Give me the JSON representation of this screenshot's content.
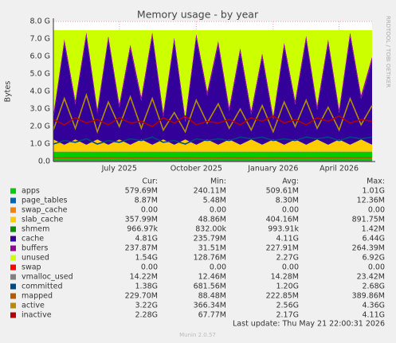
{
  "chart_data": {
    "type": "area",
    "title": "Memory usage - by year",
    "y_label": "Bytes",
    "side_text": "RRDTOOL / TOBI OETIKER",
    "footer": "Last update: Thu May 21 22:00:31 2026",
    "version": "Munin 2.0.57",
    "stat_headers": [
      "Cur:",
      "Min:",
      "Avg:",
      "Max:"
    ],
    "ylim": [
      0,
      8
    ],
    "yticks": [
      {
        "value": 0,
        "label": "0.0"
      },
      {
        "value": 1,
        "label": "1.0 G"
      },
      {
        "value": 2,
        "label": "2.0 G"
      },
      {
        "value": 3,
        "label": "3.0 G"
      },
      {
        "value": 4,
        "label": "4.0 G"
      },
      {
        "value": 5,
        "label": "5.0 G"
      },
      {
        "value": 6,
        "label": "6.0 G"
      },
      {
        "value": 7,
        "label": "7.0 G"
      },
      {
        "value": 8,
        "label": "8.0 G"
      }
    ],
    "grid": true,
    "categories": [
      null,
      null,
      null,
      null,
      null,
      null,
      "July 2025",
      null,
      null,
      null,
      null,
      null,
      null,
      "October 2025",
      null,
      null,
      null,
      null,
      null,
      null,
      "January 2026",
      null,
      null,
      null,
      null,
      null,
      "April 2026",
      null,
      null,
      null
    ],
    "series": [
      {
        "name": "apps",
        "color": "#00cc00",
        "stack": true,
        "stats": [
          "579.69M",
          "240.11M",
          "509.61M",
          "1.01G"
        ],
        "values": [
          0.55,
          0.55,
          0.55,
          0.55,
          0.55,
          0.55,
          0.55,
          0.55,
          0.55,
          0.55,
          0.55,
          0.55,
          0.55,
          0.55,
          0.55,
          0.55,
          0.55,
          0.55,
          0.55,
          0.55,
          0.55,
          0.55,
          0.55,
          0.55,
          0.55,
          0.55,
          0.55,
          0.55,
          0.55,
          0.55
        ]
      },
      {
        "name": "page_tables",
        "color": "#0066b3",
        "stack": true,
        "stats": [
          "8.87M",
          "5.48M",
          "8.30M",
          "12.36M"
        ],
        "values": [
          0.01,
          0.01,
          0.01,
          0.01,
          0.01,
          0.01,
          0.01,
          0.01,
          0.01,
          0.01,
          0.01,
          0.01,
          0.01,
          0.01,
          0.01,
          0.01,
          0.01,
          0.01,
          0.01,
          0.01,
          0.01,
          0.01,
          0.01,
          0.01,
          0.01,
          0.01,
          0.01,
          0.01,
          0.01,
          0.01
        ]
      },
      {
        "name": "swap_cache",
        "color": "#ff8000",
        "stack": true,
        "stats": [
          "0.00",
          "0.00",
          "0.00",
          "0.00"
        ],
        "values": [
          0,
          0,
          0,
          0,
          0,
          0,
          0,
          0,
          0,
          0,
          0,
          0,
          0,
          0,
          0,
          0,
          0,
          0,
          0,
          0,
          0,
          0,
          0,
          0,
          0,
          0,
          0,
          0,
          0,
          0
        ]
      },
      {
        "name": "slab_cache",
        "color": "#ffcc00",
        "stack": true,
        "stats": [
          "357.99M",
          "48.86M",
          "404.16M",
          "891.75M"
        ],
        "values": [
          0.7,
          0.4,
          0.7,
          0.4,
          0.7,
          0.4,
          0.7,
          0.4,
          0.7,
          0.4,
          0.7,
          0.4,
          0.7,
          0.4,
          0.7,
          0.4,
          0.7,
          0.4,
          0.7,
          0.4,
          0.7,
          0.4,
          0.7,
          0.4,
          0.7,
          0.4,
          0.7,
          0.4,
          0.7,
          0.4
        ]
      },
      {
        "name": "shmem",
        "color": "#008f00",
        "stack": true,
        "stats": [
          "966.97k",
          "832.00k",
          "993.91k",
          "1.42M"
        ],
        "values": [
          0.001,
          0.001,
          0.001,
          0.001,
          0.001,
          0.001,
          0.001,
          0.001,
          0.001,
          0.001,
          0.001,
          0.001,
          0.001,
          0.001,
          0.001,
          0.001,
          0.001,
          0.001,
          0.001,
          0.001,
          0.001,
          0.001,
          0.001,
          0.001,
          0.001,
          0.001,
          0.001,
          0.001,
          0.001,
          0.001
        ]
      },
      {
        "name": "cache",
        "color": "#330099",
        "stack": true,
        "stats": [
          "4.81G",
          "235.79M",
          "4.11G",
          "6.44G"
        ],
        "values": [
          1.2,
          5.8,
          2.0,
          6.2,
          1.5,
          6.0,
          1.8,
          5.5,
          2.2,
          6.2,
          1.3,
          5.9,
          1.0,
          6.1,
          2.5,
          5.7,
          1.6,
          5.3,
          1.4,
          5.0,
          1.1,
          5.6,
          2.0,
          6.0,
          1.7,
          5.8,
          1.5,
          6.2,
          2.3,
          4.8
        ]
      },
      {
        "name": "buffers",
        "color": "#990099",
        "stack": true,
        "stats": [
          "237.87M",
          "31.51M",
          "227.91M",
          "264.39M"
        ],
        "values": [
          0.24,
          0.24,
          0.24,
          0.24,
          0.24,
          0.24,
          0.24,
          0.24,
          0.24,
          0.24,
          0.24,
          0.24,
          0.24,
          0.24,
          0.24,
          0.24,
          0.24,
          0.24,
          0.24,
          0.24,
          0.24,
          0.24,
          0.24,
          0.24,
          0.24,
          0.24,
          0.24,
          0.24,
          0.24,
          0.24
        ]
      },
      {
        "name": "unused",
        "color": "#ccff00",
        "stack": true,
        "stats": [
          "1.54G",
          "128.76M",
          "2.27G",
          "6.92G"
        ],
        "values": [
          4.8,
          0.5,
          4.0,
          0.1,
          4.5,
          0.3,
          4.2,
          0.8,
          3.8,
          0.1,
          4.7,
          0.4,
          5.0,
          0.2,
          3.5,
          0.6,
          4.4,
          1.0,
          4.6,
          1.3,
          4.9,
          0.7,
          4.0,
          0.3,
          4.3,
          0.5,
          4.5,
          0.1,
          3.7,
          1.5
        ]
      },
      {
        "name": "swap",
        "color": "#ff0000",
        "stack": true,
        "stats": [
          "0.00",
          "0.00",
          "0.00",
          "0.00"
        ],
        "values": [
          0,
          0,
          0,
          0,
          0,
          0,
          0,
          0,
          0,
          0,
          0,
          0,
          0,
          0,
          0,
          0,
          0,
          0,
          0,
          0,
          0,
          0,
          0,
          0,
          0,
          0,
          0,
          0,
          0,
          0
        ]
      },
      {
        "name": "vmalloc_used",
        "color": "#808080",
        "stack": false,
        "stats": [
          "14.22M",
          "12.46M",
          "14.28M",
          "23.42M"
        ],
        "values": [
          0.014,
          0.014,
          0.014,
          0.014,
          0.014,
          0.014,
          0.014,
          0.014,
          0.014,
          0.014,
          0.014,
          0.014,
          0.014,
          0.014,
          0.014,
          0.014,
          0.014,
          0.014,
          0.014,
          0.014,
          0.014,
          0.014,
          0.014,
          0.014,
          0.014,
          0.014,
          0.014,
          0.014,
          0.014,
          0.014
        ]
      },
      {
        "name": "committed",
        "color": "#00487d",
        "stack": false,
        "stats": [
          "1.38G",
          "681.56M",
          "1.20G",
          "2.68G"
        ],
        "values": [
          1.0,
          1.2,
          1.1,
          1.3,
          1.0,
          1.2,
          1.1,
          1.3,
          1.2,
          1.4,
          1.1,
          1.2,
          1.0,
          1.3,
          1.2,
          1.3,
          1.2,
          1.4,
          1.3,
          1.4,
          1.2,
          1.3,
          1.2,
          1.4,
          1.3,
          1.4,
          1.2,
          1.4,
          1.3,
          1.4
        ]
      },
      {
        "name": "mapped",
        "color": "#b35a00",
        "stack": false,
        "stats": [
          "229.70M",
          "88.48M",
          "222.85M",
          "389.86M"
        ],
        "values": [
          0.23,
          0.22,
          0.23,
          0.22,
          0.23,
          0.22,
          0.23,
          0.22,
          0.23,
          0.22,
          0.23,
          0.22,
          0.23,
          0.22,
          0.23,
          0.22,
          0.23,
          0.22,
          0.23,
          0.22,
          0.23,
          0.22,
          0.23,
          0.22,
          0.23,
          0.22,
          0.23,
          0.22,
          0.23,
          0.22
        ]
      },
      {
        "name": "active",
        "color": "#b38f00",
        "stack": false,
        "stats": [
          "3.22G",
          "366.34M",
          "2.56G",
          "4.36G"
        ],
        "values": [
          1.8,
          3.6,
          1.9,
          3.8,
          1.7,
          3.4,
          2.0,
          3.7,
          1.9,
          3.6,
          1.8,
          2.8,
          1.7,
          3.5,
          2.2,
          3.3,
          1.9,
          3.0,
          1.8,
          3.2,
          1.7,
          3.4,
          2.0,
          3.5,
          1.9,
          3.1,
          1.8,
          3.6,
          2.1,
          3.2
        ]
      },
      {
        "name": "inactive",
        "color": "#b30000",
        "stack": false,
        "stats": [
          "2.28G",
          "67.77M",
          "2.17G",
          "4.11G"
        ],
        "values": [
          2.4,
          2.1,
          2.5,
          2.2,
          2.4,
          2.1,
          2.5,
          2.2,
          2.3,
          2.0,
          2.5,
          2.2,
          2.6,
          2.1,
          2.3,
          2.2,
          2.4,
          2.1,
          2.5,
          2.3,
          2.6,
          2.2,
          2.4,
          2.1,
          2.5,
          2.3,
          2.6,
          2.2,
          2.4,
          2.3
        ]
      }
    ]
  }
}
